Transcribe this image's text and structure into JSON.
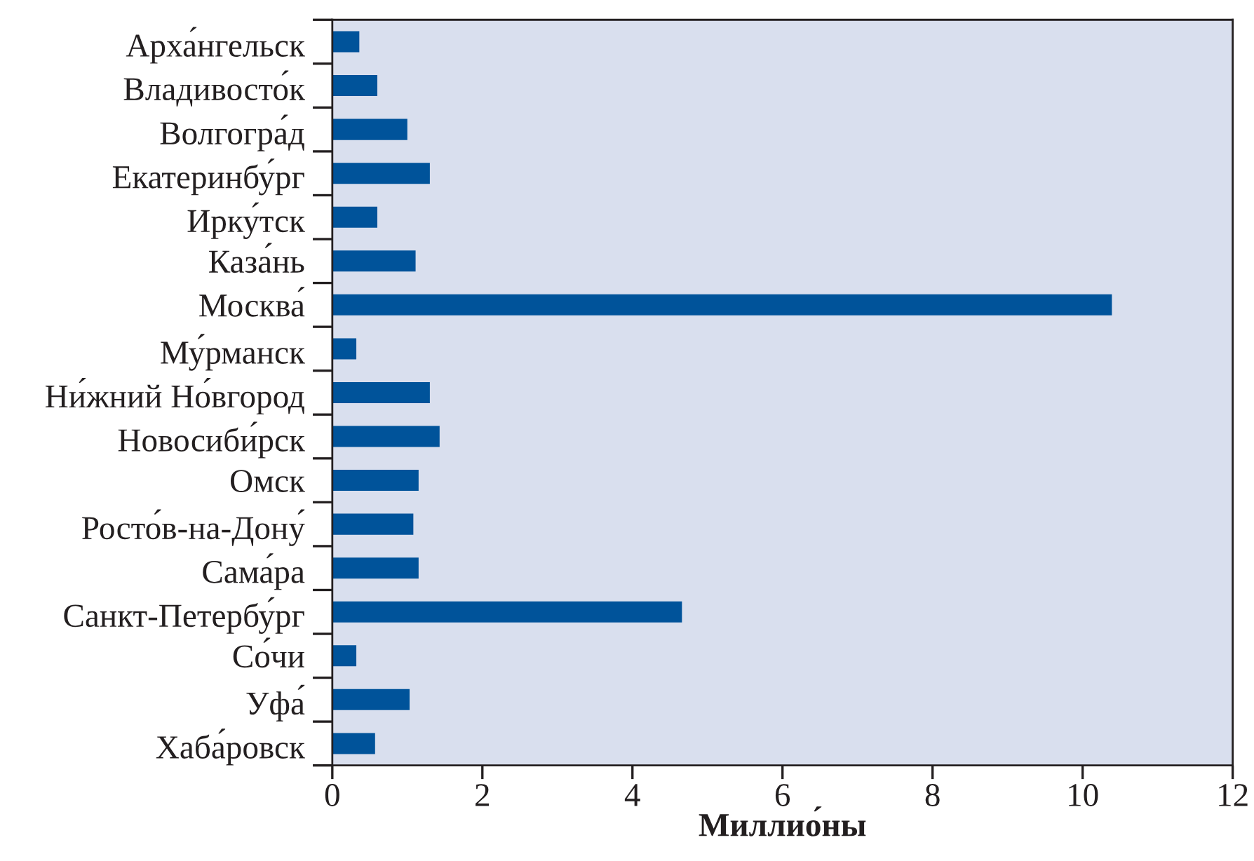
{
  "chart_data": {
    "type": "bar",
    "orientation": "horizontal",
    "xlabel": "Миллио́ны",
    "categories": [
      "Арха́нгельск",
      "Владивосто́к",
      "Волгогра́д",
      "Екатеринбу́рг",
      "Ирку́тск",
      "Каза́нь",
      "Москва́",
      "Му́рманск",
      "Ни́жний Но́вгород",
      "Новосиби́рск",
      "Омск",
      "Росто́в-на-Дону́",
      "Сама́ра",
      "Санкт-Петербу́рг",
      "Со́чи",
      "Уфа́",
      "Хаба́ровск"
    ],
    "values": [
      0.36,
      0.6,
      1.0,
      1.3,
      0.6,
      1.11,
      10.39,
      0.32,
      1.3,
      1.43,
      1.15,
      1.08,
      1.15,
      4.66,
      0.32,
      1.03,
      0.57
    ],
    "color": "#00539a",
    "xlim": [
      0,
      12
    ],
    "xticks": [
      0,
      2,
      4,
      6,
      8,
      10,
      12
    ]
  }
}
